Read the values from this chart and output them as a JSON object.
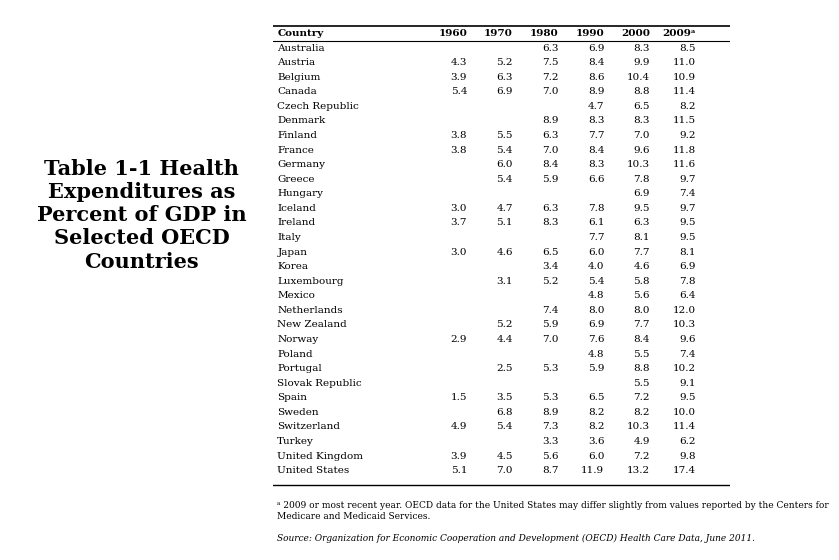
{
  "title": "Table 1-1 Health\nExpenditures as\nPercent of GDP in\nSelected OECD\nCountries",
  "columns": [
    "Country",
    "1960",
    "1970",
    "1980",
    "1990",
    "2000",
    "2009ᵃ"
  ],
  "rows": [
    [
      "Australia",
      "",
      "",
      "6.3",
      "6.9",
      "8.3",
      "8.5"
    ],
    [
      "Austria",
      "4.3",
      "5.2",
      "7.5",
      "8.4",
      "9.9",
      "11.0"
    ],
    [
      "Belgium",
      "3.9",
      "6.3",
      "7.2",
      "8.6",
      "10.4",
      "10.9"
    ],
    [
      "Canada",
      "5.4",
      "6.9",
      "7.0",
      "8.9",
      "8.8",
      "11.4"
    ],
    [
      "Czech Republic",
      "",
      "",
      "",
      "4.7",
      "6.5",
      "8.2"
    ],
    [
      "Denmark",
      "",
      "",
      "8.9",
      "8.3",
      "8.3",
      "11.5"
    ],
    [
      "Finland",
      "3.8",
      "5.5",
      "6.3",
      "7.7",
      "7.0",
      "9.2"
    ],
    [
      "France",
      "3.8",
      "5.4",
      "7.0",
      "8.4",
      "9.6",
      "11.8"
    ],
    [
      "Germany",
      "",
      "6.0",
      "8.4",
      "8.3",
      "10.3",
      "11.6"
    ],
    [
      "Greece",
      "",
      "5.4",
      "5.9",
      "6.6",
      "7.8",
      "9.7"
    ],
    [
      "Hungary",
      "",
      "",
      "",
      "",
      "6.9",
      "7.4"
    ],
    [
      "Iceland",
      "3.0",
      "4.7",
      "6.3",
      "7.8",
      "9.5",
      "9.7"
    ],
    [
      "Ireland",
      "3.7",
      "5.1",
      "8.3",
      "6.1",
      "6.3",
      "9.5"
    ],
    [
      "Italy",
      "",
      "",
      "",
      "7.7",
      "8.1",
      "9.5"
    ],
    [
      "Japan",
      "3.0",
      "4.6",
      "6.5",
      "6.0",
      "7.7",
      "8.1"
    ],
    [
      "Korea",
      "",
      "",
      "3.4",
      "4.0",
      "4.6",
      "6.9"
    ],
    [
      "Luxembourg",
      "",
      "3.1",
      "5.2",
      "5.4",
      "5.8",
      "7.8"
    ],
    [
      "Mexico",
      "",
      "",
      "",
      "4.8",
      "5.6",
      "6.4"
    ],
    [
      "Netherlands",
      "",
      "",
      "7.4",
      "8.0",
      "8.0",
      "12.0"
    ],
    [
      "New Zealand",
      "",
      "5.2",
      "5.9",
      "6.9",
      "7.7",
      "10.3"
    ],
    [
      "Norway",
      "2.9",
      "4.4",
      "7.0",
      "7.6",
      "8.4",
      "9.6"
    ],
    [
      "Poland",
      "",
      "",
      "",
      "4.8",
      "5.5",
      "7.4"
    ],
    [
      "Portugal",
      "",
      "2.5",
      "5.3",
      "5.9",
      "8.8",
      "10.2"
    ],
    [
      "Slovak Republic",
      "",
      "",
      "",
      "",
      "5.5",
      "9.1"
    ],
    [
      "Spain",
      "1.5",
      "3.5",
      "5.3",
      "6.5",
      "7.2",
      "9.5"
    ],
    [
      "Sweden",
      "",
      "6.8",
      "8.9",
      "8.2",
      "8.2",
      "10.0"
    ],
    [
      "Switzerland",
      "4.9",
      "5.4",
      "7.3",
      "8.2",
      "10.3",
      "11.4"
    ],
    [
      "Turkey",
      "",
      "",
      "3.3",
      "3.6",
      "4.9",
      "6.2"
    ],
    [
      "United Kingdom",
      "3.9",
      "4.5",
      "5.6",
      "6.0",
      "7.2",
      "9.8"
    ],
    [
      "United States",
      "5.1",
      "7.0",
      "8.7",
      "11.9",
      "13.2",
      "17.4"
    ]
  ],
  "footnote1": "ᵃ 2009 or most recent year. OECD data for the United States may differ slightly from values reported by the Centers for\nMedicare and Medicaid Services.",
  "footnote2": "Source: Organization for Economic Cooperation and Development (OECD) Health Care Data, June 2011.",
  "bg_color": "#ffffff",
  "header_line_color": "#000000",
  "text_color": "#000000",
  "font_size_title": 15,
  "font_size_table": 7.5,
  "font_size_footnote": 6.5
}
